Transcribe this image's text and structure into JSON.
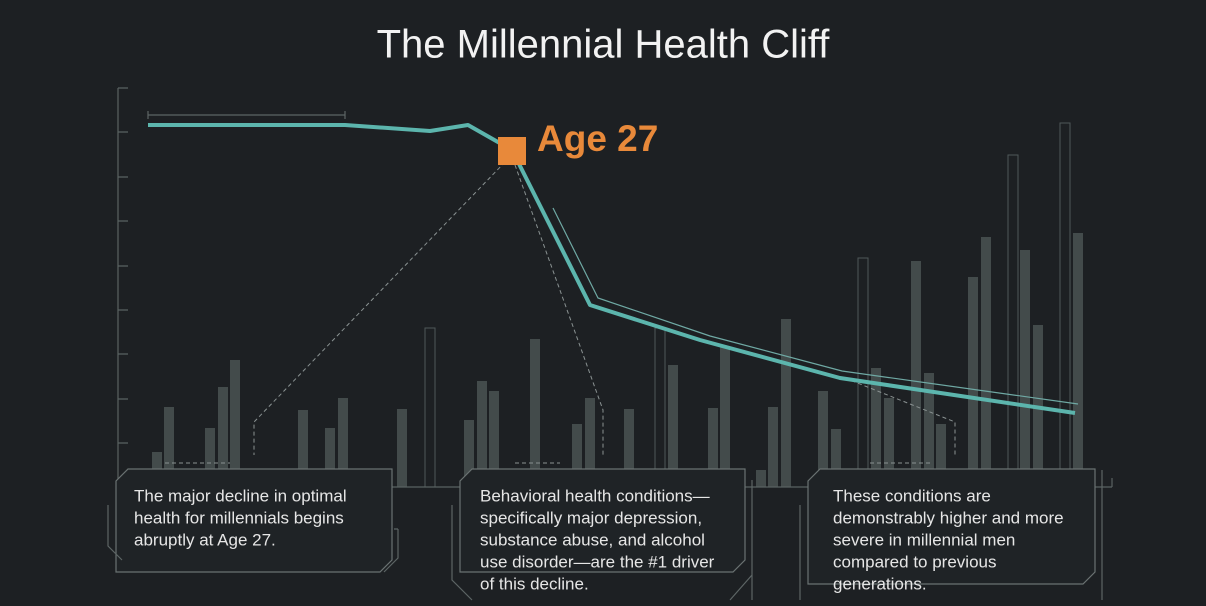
{
  "title": "The Millennial Health Cliff",
  "highlight": "Age 27",
  "callouts": [
    [
      "The major decline in optimal",
      "health for millennials begins",
      "abruptly at Age 27."
    ],
    [
      "Behavioral health conditions—",
      "specifically major depression,",
      "substance abuse, and alcohol",
      "use disorder—are the #1 driver",
      "of this decline."
    ],
    [
      "These conditions are",
      "demonstrably higher and more",
      "severe in millennial men",
      "compared to previous",
      "generations."
    ]
  ]
}
